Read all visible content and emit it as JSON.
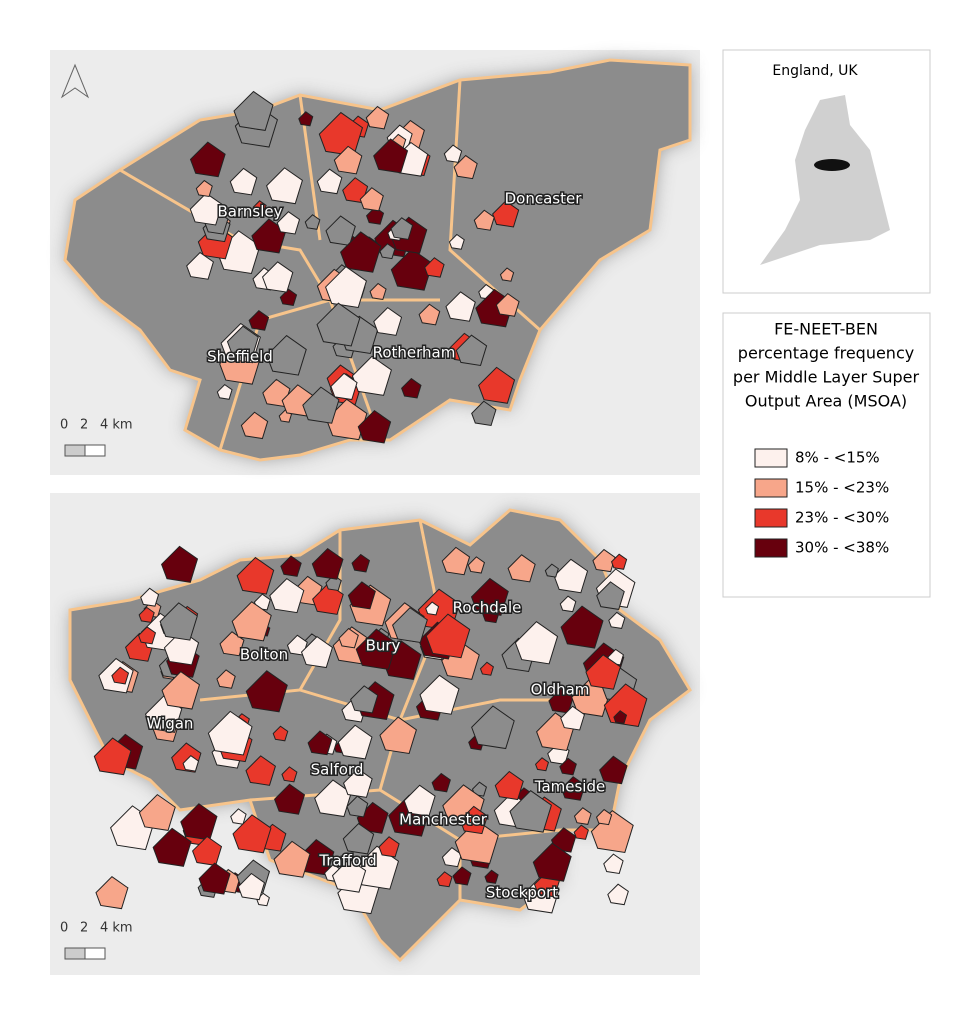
{
  "maps": [
    {
      "labels": [
        "Barnsley",
        "Doncaster",
        "Sheffield",
        "Rotherham"
      ],
      "scale": [
        "0",
        "2",
        "4 km"
      ]
    },
    {
      "labels": [
        "Rochdale",
        "Bury",
        "Bolton",
        "Oldham",
        "Wigan",
        "Salford",
        "Tameside",
        "Manchester",
        "Trafford",
        "Stockport"
      ],
      "scale": [
        "0",
        "2",
        "4 km"
      ]
    }
  ],
  "inset": {
    "title": "England, UK"
  },
  "legend": {
    "title": [
      "FE-NEET-BEN",
      "percentage frequency",
      "per Middle Layer Super",
      "Output Area (MSOA)"
    ],
    "items": [
      {
        "label": "8% - <15%",
        "color": "#fdf1ed"
      },
      {
        "label": "15% - <23%",
        "color": "#f7a68a"
      },
      {
        "label": "23% - <30%",
        "color": "#e8382b"
      },
      {
        "label": "30% - <38%",
        "color": "#67000d"
      }
    ]
  }
}
